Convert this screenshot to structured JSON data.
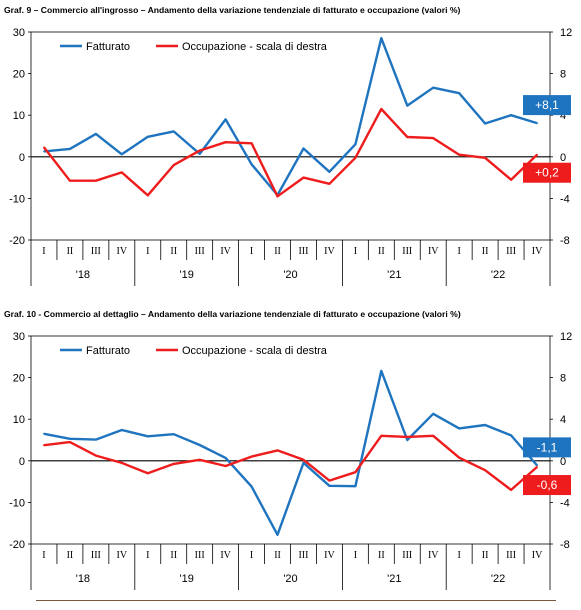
{
  "chart_data": [
    {
      "type": "line",
      "title": "Graf. 9 – Commercio all'ingrosso – Andamento della variazione tendenziale di fatturato e occupazione (valori %)",
      "quarters": [
        "I",
        "II",
        "III",
        "IV",
        "I",
        "II",
        "III",
        "IV",
        "I",
        "II",
        "III",
        "IV",
        "I",
        "II",
        "III",
        "IV",
        "I",
        "II",
        "III",
        "IV"
      ],
      "years": [
        "'18",
        "'19",
        "'20",
        "'21",
        "'22"
      ],
      "y_left": {
        "range": [
          -20,
          30
        ],
        "ticks": [
          "30",
          "20",
          "10",
          "0",
          "-10",
          "-20"
        ]
      },
      "y_right": {
        "range": [
          -8,
          12
        ],
        "ticks": [
          "12",
          "8",
          "4",
          "0",
          "-4",
          "-8"
        ]
      },
      "legend": {
        "position": "top-left",
        "entries": [
          "Fatturato",
          "Occupazione - scala di destra"
        ]
      },
      "series": [
        {
          "name": "Fatturato",
          "axis": "left",
          "color": "#1f74bf",
          "values": [
            1.3,
            1.9,
            5.5,
            0.6,
            4.8,
            6.1,
            0.7,
            9.0,
            -1.8,
            -9.2,
            2.0,
            -3.6,
            3.0,
            28.5,
            12.3,
            16.6,
            15.3,
            8.0,
            10.0,
            8.1
          ]
        },
        {
          "name": "Occupazione - scala di destra",
          "axis": "right",
          "color": "#ee1c1c",
          "values": [
            0.9,
            -2.3,
            -2.3,
            -1.5,
            -3.7,
            -0.8,
            0.6,
            1.4,
            1.3,
            -3.8,
            -2.0,
            -2.6,
            -0.1,
            4.6,
            1.9,
            1.8,
            0.2,
            -0.1,
            -2.2,
            0.2
          ]
        }
      ],
      "callouts": [
        {
          "text": "+8,1",
          "color": "#1f74bf",
          "series": 0
        },
        {
          "text": "+0,2",
          "color": "#ee1c1c",
          "series": 1
        }
      ]
    },
    {
      "type": "line",
      "title": "Graf. 10 - Commercio al dettaglio – Andamento della variazione tendenziale di fatturato e occupazione (valori %)",
      "quarters": [
        "I",
        "II",
        "III",
        "IV",
        "I",
        "II",
        "III",
        "IV",
        "I",
        "II",
        "III",
        "IV",
        "I",
        "II",
        "III",
        "IV",
        "I",
        "II",
        "III",
        "IV"
      ],
      "years": [
        "'18",
        "'19",
        "'20",
        "'21",
        "'22"
      ],
      "y_left": {
        "range": [
          -20,
          30
        ],
        "ticks": [
          "30",
          "20",
          "10",
          "0",
          "-10",
          "-20"
        ]
      },
      "y_right": {
        "range": [
          -8,
          12
        ],
        "ticks": [
          "12",
          "8",
          "4",
          "0",
          "-4",
          "-8"
        ]
      },
      "legend": {
        "position": "top-left",
        "entries": [
          "Fatturato",
          "Occupazione - scala di destra"
        ]
      },
      "series": [
        {
          "name": "Fatturato",
          "axis": "left",
          "color": "#1f74bf",
          "values": [
            6.5,
            5.3,
            5.1,
            7.4,
            5.9,
            6.4,
            3.8,
            0.7,
            -6.2,
            -17.8,
            -0.5,
            -6.0,
            -6.1,
            21.6,
            5.0,
            11.3,
            7.8,
            8.6,
            6.1,
            -1.1
          ]
        },
        {
          "name": "Occupazione - scala di destra",
          "axis": "right",
          "color": "#ee1c1c",
          "values": [
            1.5,
            1.8,
            0.5,
            -0.2,
            -1.2,
            -0.3,
            0.1,
            -0.5,
            0.4,
            1.0,
            0.1,
            -1.9,
            -1.1,
            2.4,
            2.3,
            2.4,
            0.3,
            -0.9,
            -2.8,
            -0.6
          ]
        }
      ],
      "callouts": [
        {
          "text": "-1,1",
          "color": "#1f74bf",
          "series": 0
        },
        {
          "text": "-0,6",
          "color": "#ee1c1c",
          "series": 1
        }
      ]
    }
  ]
}
